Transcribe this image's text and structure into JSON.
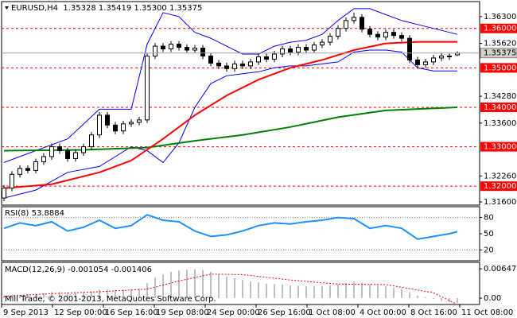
{
  "chart_data": [
    {
      "type": "candlestick",
      "title": "EURUSD,H4  1.35328 1.35419 1.35300 1.35375",
      "xlim": [
        -0.3,
        59.8
      ],
      "xticks": [
        {
          "value": -0.3,
          "label": "9 Sep 2013"
        },
        {
          "value": 6.1,
          "label": "12 Sep 00:00"
        },
        {
          "value": 12.5,
          "label": "16 Sep 16:00"
        },
        {
          "value": 18.9,
          "label": "19 Sep 08:00"
        },
        {
          "value": 25.3,
          "label": "24 Sep 00:00"
        },
        {
          "value": 31.7,
          "label": "26 Sep 16:00"
        },
        {
          "value": 38.1,
          "label": "1 Oct 08:00"
        },
        {
          "value": 44.5,
          "label": "4 Oct 00:00"
        },
        {
          "value": 50.9,
          "label": "8 Oct 16:00"
        },
        {
          "value": 57.3,
          "label": "11 Oct 08:00"
        }
      ],
      "ylim": [
        1.3152,
        1.3668
      ],
      "yticks": [
        {
          "value": 1.363,
          "label": "1.36300"
        },
        {
          "value": 1.3562,
          "label": "1.35620"
        },
        {
          "value": 1.3428,
          "label": "1.34280"
        },
        {
          "value": 1.336,
          "label": "1.33600"
        },
        {
          "value": 1.3226,
          "label": "1.32260"
        },
        {
          "value": 1.316,
          "label": "1.31600"
        }
      ],
      "levels": [
        {
          "value": 1.36,
          "label": "1.36000"
        },
        {
          "value": 1.35,
          "label": "1.35000"
        },
        {
          "value": 1.34,
          "label": "1.34000"
        },
        {
          "value": 1.33,
          "label": "1.33000"
        },
        {
          "value": 1.32,
          "label": "1.32000"
        }
      ],
      "level_color": "#ff0000",
      "last": 1.35375,
      "bull_color": "#ffffff",
      "bear_color": "#000000",
      "open": [
        1.317,
        1.3195,
        1.323,
        1.3245,
        1.324,
        1.3262,
        1.3275,
        1.33,
        1.329,
        1.327,
        1.3285,
        1.33,
        1.333,
        1.338,
        1.3355,
        1.334,
        1.3358,
        1.3362,
        1.3368,
        1.353,
        1.3555,
        1.3548,
        1.356,
        1.3552,
        1.3545,
        1.355,
        1.353,
        1.3512,
        1.3505,
        1.3498,
        1.351,
        1.3505,
        1.3515,
        1.3528,
        1.3522,
        1.3535,
        1.3548,
        1.354,
        1.3552,
        1.3545,
        1.3558,
        1.3565,
        1.358,
        1.36,
        1.362,
        1.3628,
        1.3598,
        1.3585,
        1.3578,
        1.359,
        1.3582,
        1.3575,
        1.352,
        1.3508,
        1.3515,
        1.3525,
        1.353,
        1.35328
      ],
      "high": [
        1.3203,
        1.3238,
        1.3253,
        1.3253,
        1.327,
        1.3283,
        1.3308,
        1.3308,
        1.3298,
        1.3293,
        1.3308,
        1.3338,
        1.3388,
        1.3388,
        1.3363,
        1.3366,
        1.337,
        1.3376,
        1.3538,
        1.3563,
        1.3563,
        1.3568,
        1.3568,
        1.356,
        1.3558,
        1.3558,
        1.3538,
        1.352,
        1.3513,
        1.3518,
        1.3518,
        1.3523,
        1.3536,
        1.3536,
        1.3543,
        1.3556,
        1.3556,
        1.356,
        1.356,
        1.3566,
        1.3573,
        1.3588,
        1.3608,
        1.3628,
        1.364,
        1.3636,
        1.3606,
        1.3593,
        1.3598,
        1.3598,
        1.359,
        1.3583,
        1.3528,
        1.3523,
        1.3533,
        1.3538,
        1.3538,
        1.35419
      ],
      "low": [
        1.3162,
        1.3187,
        1.3222,
        1.3232,
        1.3232,
        1.3254,
        1.3267,
        1.3282,
        1.3262,
        1.3262,
        1.3277,
        1.3292,
        1.3322,
        1.3347,
        1.3332,
        1.3332,
        1.335,
        1.3354,
        1.336,
        1.3522,
        1.354,
        1.354,
        1.3544,
        1.3537,
        1.3537,
        1.3522,
        1.3504,
        1.3497,
        1.349,
        1.349,
        1.3497,
        1.3497,
        1.3507,
        1.3514,
        1.3514,
        1.3527,
        1.3532,
        1.3532,
        1.3537,
        1.3537,
        1.355,
        1.3557,
        1.3572,
        1.3592,
        1.3612,
        1.359,
        1.3577,
        1.357,
        1.357,
        1.3574,
        1.3567,
        1.3512,
        1.3498,
        1.35,
        1.3507,
        1.3517,
        1.352,
        1.353
      ],
      "close": [
        1.3195,
        1.323,
        1.3245,
        1.324,
        1.3262,
        1.3275,
        1.33,
        1.329,
        1.327,
        1.3285,
        1.33,
        1.333,
        1.338,
        1.3355,
        1.334,
        1.3358,
        1.3362,
        1.3368,
        1.353,
        1.3555,
        1.3548,
        1.356,
        1.3552,
        1.3545,
        1.355,
        1.353,
        1.3512,
        1.3505,
        1.3498,
        1.351,
        1.3505,
        1.3515,
        1.3528,
        1.3522,
        1.3535,
        1.3548,
        1.354,
        1.3552,
        1.3545,
        1.3558,
        1.3565,
        1.358,
        1.36,
        1.362,
        1.3628,
        1.3598,
        1.3585,
        1.3578,
        1.359,
        1.3582,
        1.3575,
        1.352,
        1.3508,
        1.3515,
        1.3525,
        1.353,
        1.3528,
        1.35375
      ],
      "lines": [
        {
          "color": "#0000ff",
          "width": 1,
          "x": [
            0,
            4,
            8,
            12,
            16,
            18,
            20,
            22,
            24,
            26,
            28,
            30,
            32,
            34,
            36,
            38,
            40,
            42,
            44,
            46,
            48,
            50,
            52,
            54,
            57
          ],
          "values": [
            1.326,
            1.329,
            1.332,
            1.3395,
            1.3395,
            1.356,
            1.364,
            1.363,
            1.359,
            1.3575,
            1.3555,
            1.3535,
            1.3535,
            1.3555,
            1.3565,
            1.357,
            1.3585,
            1.362,
            1.365,
            1.365,
            1.3635,
            1.362,
            1.361,
            1.36,
            1.3585
          ]
        },
        {
          "color": "#0000ff",
          "width": 1,
          "x": [
            0,
            4,
            8,
            12,
            16,
            18,
            20,
            22,
            24,
            26,
            28,
            30,
            32,
            34,
            36,
            38,
            40,
            42,
            44,
            46,
            48,
            50,
            52,
            54,
            57
          ],
          "values": [
            1.317,
            1.319,
            1.3235,
            1.325,
            1.33,
            1.329,
            1.326,
            1.331,
            1.34,
            1.346,
            1.348,
            1.3485,
            1.349,
            1.35,
            1.3505,
            1.3505,
            1.351,
            1.3515,
            1.354,
            1.3545,
            1.3545,
            1.354,
            1.35,
            1.3492,
            1.3492
          ]
        },
        {
          "color": "#008000",
          "width": 2,
          "x": [
            0,
            10,
            18,
            24,
            30,
            36,
            42,
            48,
            57
          ],
          "values": [
            1.329,
            1.3292,
            1.3298,
            1.3315,
            1.333,
            1.335,
            1.3375,
            1.3392,
            1.34
          ]
        },
        {
          "color": "#ff0000",
          "width": 2,
          "x": [
            0,
            6,
            12,
            16,
            20,
            24,
            28,
            32,
            36,
            40,
            44,
            48,
            52,
            57
          ],
          "values": [
            1.3195,
            1.3205,
            1.3235,
            1.3265,
            1.332,
            1.338,
            1.343,
            1.347,
            1.35,
            1.352,
            1.3545,
            1.3562,
            1.3566,
            1.3566
          ]
        }
      ]
    },
    {
      "type": "line",
      "title": "RSI(8) 53.8884",
      "color": "#1e90ff",
      "ylim": [
        0,
        100
      ],
      "yticks": [
        80,
        50,
        20
      ],
      "levels": [
        80,
        20
      ],
      "x": [
        0,
        2,
        4,
        6,
        8,
        10,
        12,
        14,
        16,
        18,
        20,
        22,
        24,
        26,
        28,
        30,
        32,
        34,
        36,
        38,
        40,
        42,
        44,
        46,
        48,
        50,
        52,
        54,
        56,
        57
      ],
      "values": [
        60,
        70,
        65,
        72,
        55,
        62,
        75,
        60,
        65,
        85,
        75,
        72,
        55,
        45,
        48,
        55,
        65,
        70,
        68,
        72,
        75,
        80,
        78,
        60,
        65,
        60,
        40,
        45,
        50,
        53.8884
      ]
    },
    {
      "type": "macd",
      "title": "MACD(12,26,9) -0.001054 -0.001406",
      "copyright": "Mill Trade, © 2001-2013, MetaQuotes Software Corp.",
      "color": "#c0c0c0",
      "ylim": [
        -0.0014,
        0.0079
      ],
      "yticks": [
        0.006474,
        {
          "value": 0,
          "label": "0.00"
        }
      ],
      "values": [
        0.0005,
        0.0006,
        0.0008,
        0.0009,
        0.001,
        0.0011,
        0.0013,
        0.0013,
        0.0012,
        0.0012,
        0.0013,
        0.0015,
        0.0019,
        0.0019,
        0.0018,
        0.0019,
        0.002,
        0.0021,
        0.0033,
        0.0045,
        0.0052,
        0.0058,
        0.0061,
        0.0063,
        0.0064,
        0.0062,
        0.0058,
        0.0053,
        0.0048,
        0.0044,
        0.004,
        0.0037,
        0.0035,
        0.0032,
        0.0031,
        0.003,
        0.0028,
        0.0027,
        0.0026,
        0.0026,
        0.0027,
        0.0029,
        0.0031,
        0.0034,
        0.0036,
        0.0034,
        0.0031,
        0.0028,
        0.0026,
        0.0023,
        0.002,
        0.0013,
        0.0006,
        0.0002,
        -0.0002,
        -0.0006,
        -0.0009,
        -0.001054
      ],
      "signal": {
        "color": "#ff0000",
        "x": [
          0,
          6,
          12,
          18,
          22,
          26,
          30,
          36,
          42,
          48,
          54,
          57
        ],
        "values": [
          0.0004,
          0.001,
          0.0014,
          0.002,
          0.0038,
          0.0053,
          0.0052,
          0.004,
          0.0031,
          0.003,
          0.0012,
          -0.001406
        ]
      }
    }
  ]
}
